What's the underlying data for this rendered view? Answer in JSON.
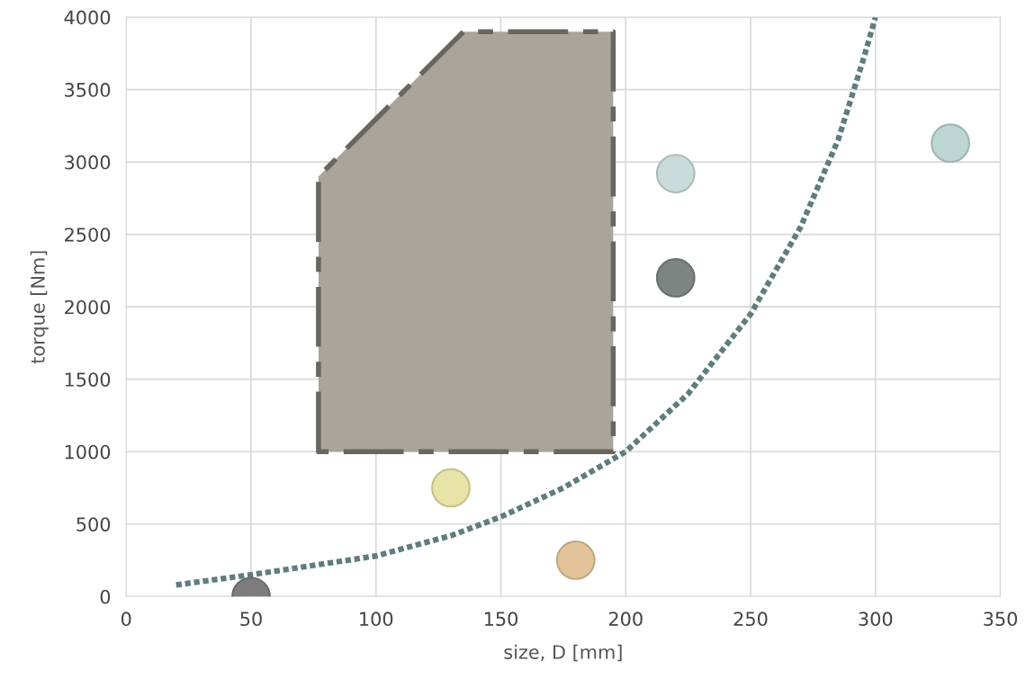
{
  "chart_data": {
    "type": "scatter",
    "xlabel": "size, D [mm]",
    "ylabel": "torque [Nm]",
    "xlim": [
      0,
      350
    ],
    "xticks": [
      0,
      50,
      100,
      150,
      200,
      250,
      300,
      350
    ],
    "ylim": [
      0,
      4000
    ],
    "yticks": [
      0,
      500,
      1000,
      1500,
      2000,
      2500,
      3000,
      3500,
      4000
    ],
    "grid": true,
    "legend": false,
    "series": [
      {
        "type": "area",
        "color": "#a9a59b",
        "line_style": "dashdot",
        "x": [
          77,
          77,
          135,
          195,
          195,
          77
        ],
        "values": [
          1000,
          2900,
          3900,
          3900,
          1000,
          1000
        ]
      },
      {
        "type": "line",
        "color": "#5f7d7d",
        "line_style": "dotted",
        "marker": "none",
        "x": [
          20,
          50,
          100,
          130,
          150,
          175,
          200,
          225,
          250,
          270,
          285,
          295,
          300
        ],
        "values": [
          80,
          150,
          280,
          420,
          550,
          750,
          1000,
          1400,
          1950,
          2550,
          3150,
          3700,
          4000
        ]
      },
      {
        "type": "scatter",
        "marker": "circle",
        "x": [
          50,
          130,
          180,
          220,
          220,
          330
        ],
        "values": [
          0,
          750,
          250,
          2920,
          2200,
          3130
        ],
        "colors": [
          "#7d7d7b",
          "#e8e3a6",
          "#e3c49a",
          "#c9dcd9",
          "#7c8581",
          "#bcd6d3"
        ]
      }
    ]
  }
}
